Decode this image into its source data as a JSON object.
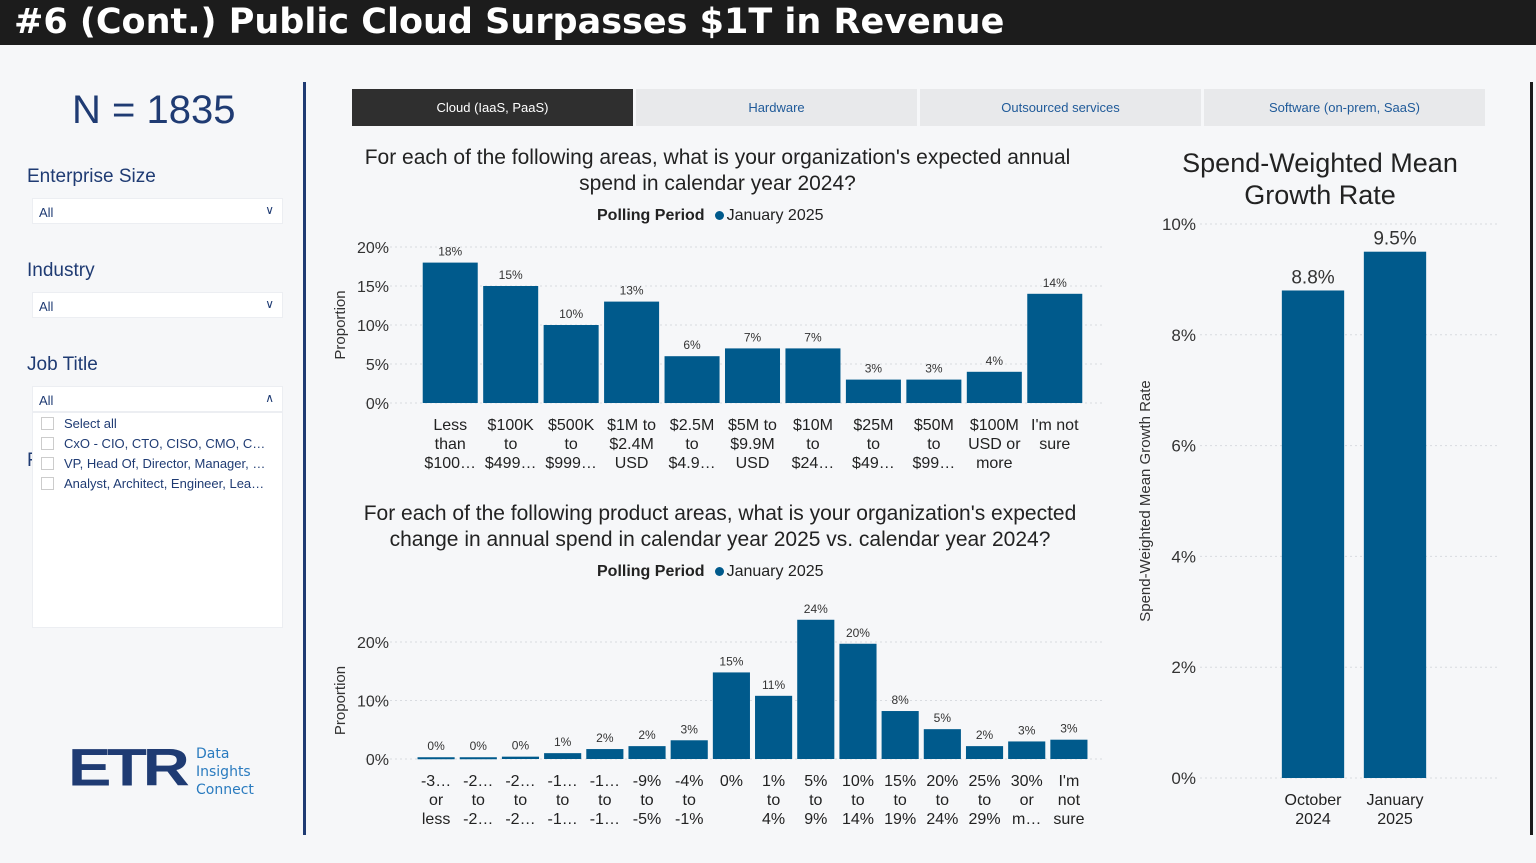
{
  "header": {
    "title": "#6 (Cont.) Public Cloud Surpasses $1T in Revenue"
  },
  "sidebar": {
    "n_label": "N = 1835",
    "filters": [
      {
        "label": "Enterprise Size",
        "value": "All"
      },
      {
        "label": "Industry",
        "value": "All"
      },
      {
        "label": "Job Title",
        "value": "All"
      }
    ],
    "job_title_options": [
      "Select all",
      "CxO - CIO, CTO, CISO, CMO, C…",
      "VP, Head Of, Director, Manager, …",
      "Analyst, Architect, Engineer, Lea…"
    ],
    "obscured_letter": "F",
    "logo": {
      "mark": "ETR",
      "line1": "Data",
      "line2": "Insights",
      "line3": "Connect"
    }
  },
  "tabs": [
    {
      "label": "Cloud (IaaS, PaaS)",
      "active": true
    },
    {
      "label": "Hardware",
      "active": false
    },
    {
      "label": "Outsourced services",
      "active": false
    },
    {
      "label": "Software (on-prem, SaaS)",
      "active": false
    }
  ],
  "colors": {
    "bar": "#005a8c",
    "accent": "#1f3b73"
  },
  "chart_data": [
    {
      "type": "bar",
      "title": "For each of the following areas, what is your organization's expected annual spend in calendar year 2024?",
      "legend_title": "Polling Period",
      "legend": "January 2025",
      "ylabel": "Proportion",
      "ylim": [
        0,
        20
      ],
      "yticks": [
        "0%",
        "5%",
        "10%",
        "15%",
        "20%"
      ],
      "categories": [
        "Less\nthan\n$100…",
        "$100K\nto\n$499…",
        "$500K\nto\n$999…",
        "$1M to\n$2.4M\nUSD",
        "$2.5M\nto\n$4.9…",
        "$5M to\n$9.9M\nUSD",
        "$10M\nto\n$24…",
        "$25M\nto\n$49…",
        "$50M\nto\n$99…",
        "$100M\nUSD or\nmore",
        "I'm not\nsure"
      ],
      "values": [
        18,
        15,
        10,
        13,
        6,
        7,
        7,
        3,
        3,
        4,
        14
      ],
      "labels": [
        "18%",
        "15%",
        "10%",
        "13%",
        "6%",
        "7%",
        "7%",
        "3%",
        "3%",
        "4%",
        "14%"
      ]
    },
    {
      "type": "bar",
      "title": "For each of the following product areas, what is your organization's expected change in annual spend in calendar year 2025 vs. calendar year 2024?",
      "legend_title": "Polling Period",
      "legend": "January 2025",
      "ylabel": "Proportion",
      "ylim": [
        0,
        25
      ],
      "yticks": [
        "0%",
        "10%",
        "20%"
      ],
      "categories": [
        "-3…\nor\nless",
        "-2…\nto\n-2…",
        "-2…\nto\n-2…",
        "-1…\nto\n-1…",
        "-1…\nto\n-1…",
        "-9%\nto\n-5%",
        "-4%\nto\n-1%",
        "0%",
        "1%\nto\n4%",
        "5%\nto\n9%",
        "10%\nto\n14%",
        "15%\nto\n19%",
        "20%\nto\n24%",
        "25%\nto\n29%",
        "30%\nor\nm…",
        "I'm\nnot\nsure"
      ],
      "values": [
        0.3,
        0.3,
        0.4,
        1,
        1.7,
        2.2,
        3.2,
        14.8,
        10.8,
        23.8,
        19.7,
        8.2,
        5.1,
        2.2,
        3,
        3.3
      ],
      "labels": [
        "0%",
        "0%",
        "0%",
        "1%",
        "2%",
        "2%",
        "3%",
        "15%",
        "11%",
        "24%",
        "20%",
        "8%",
        "5%",
        "2%",
        "3%",
        "3%"
      ]
    },
    {
      "type": "bar",
      "title": "Spend-Weighted Mean Growth Rate",
      "ylabel": "Spend-Weighted Mean Growth Rate",
      "ylim": [
        0,
        10
      ],
      "yticks": [
        "0%",
        "2%",
        "4%",
        "6%",
        "8%",
        "10%"
      ],
      "categories": [
        "October\n2024",
        "January\n2025"
      ],
      "values": [
        8.8,
        9.5
      ],
      "labels": [
        "8.8%",
        "9.5%"
      ]
    }
  ]
}
